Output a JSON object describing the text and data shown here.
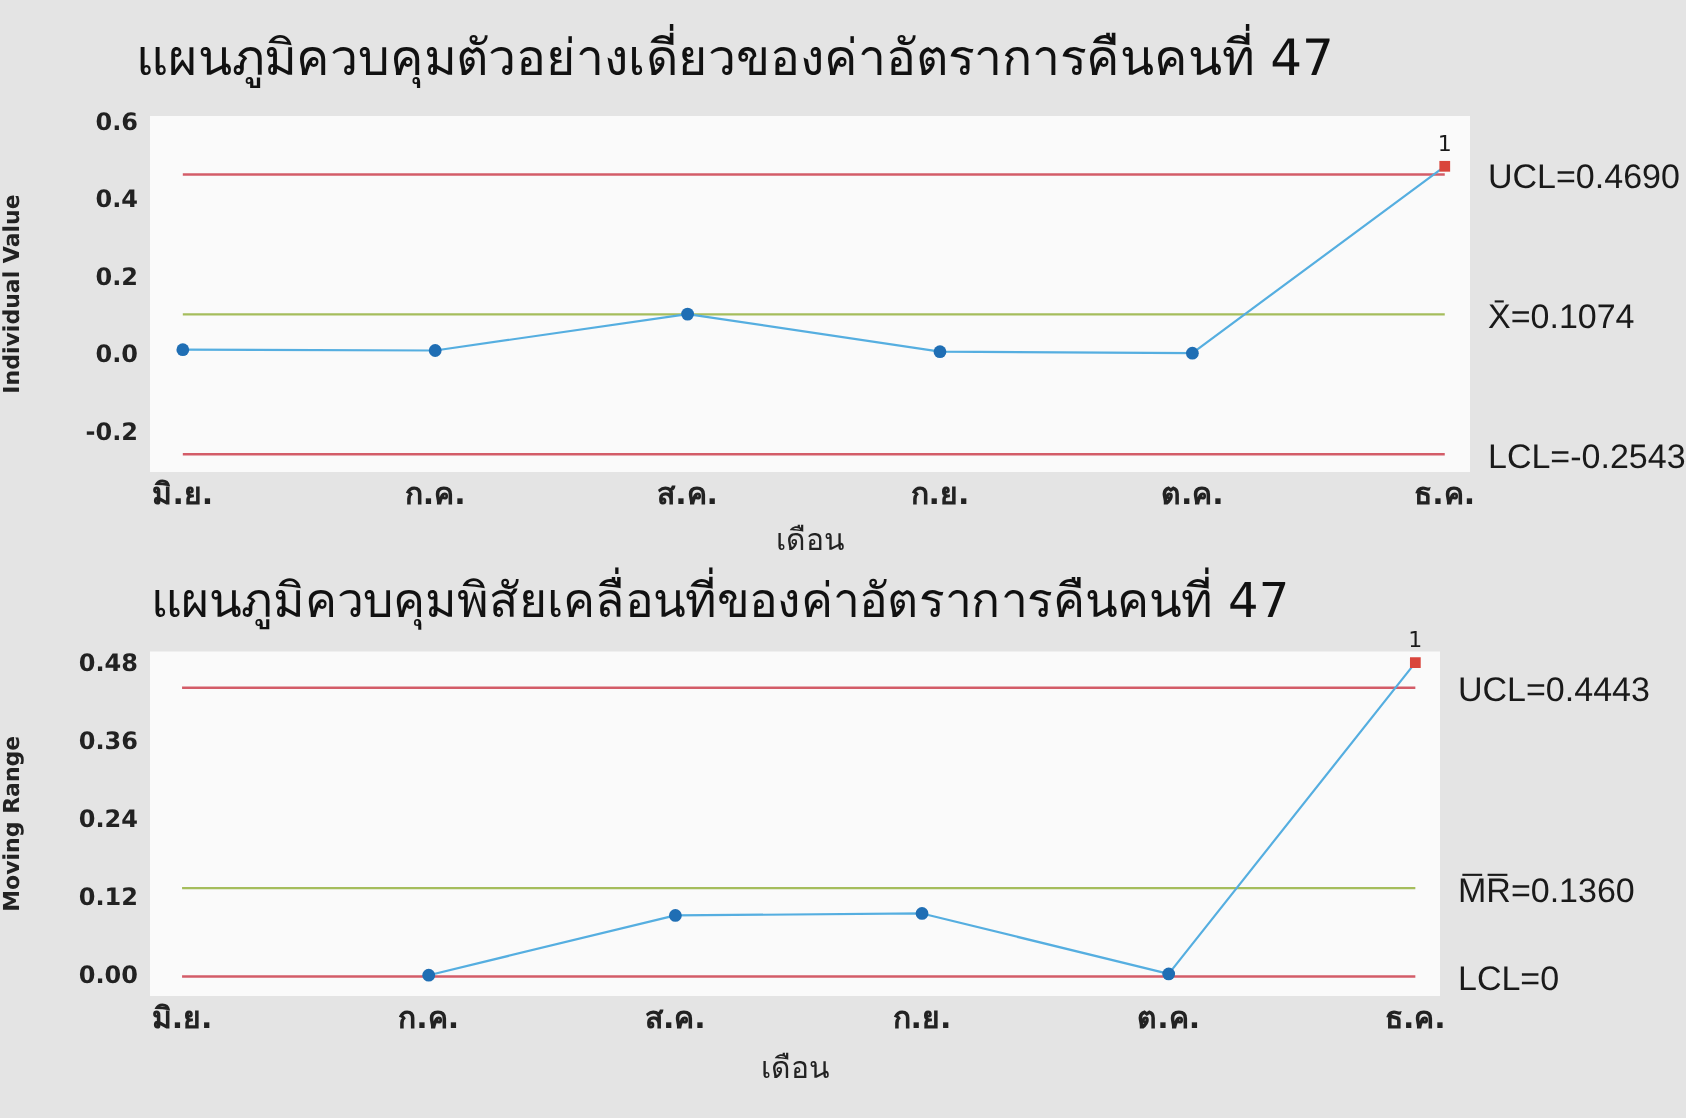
{
  "chart_data": [
    {
      "type": "line",
      "title": "แผนภูมิควบคุมตัวอย่างเดี่ยวของค่าอัตราการคืนคนที่ 47",
      "xlabel": "เดือน",
      "ylabel": "Individual Value",
      "categories": [
        "มิ.ย.",
        "ก.ค.",
        "ส.ค.",
        "ก.ย.",
        "ต.ค.",
        "ธ.ค."
      ],
      "series": [
        {
          "color": "#55aee0",
          "marker": "none",
          "values": [
            0.016,
            0.014,
            0.108,
            0.011,
            0.007,
            0.49
          ]
        },
        {
          "type": "scatter",
          "color": "#1f6eb4",
          "marker": "circle",
          "values": [
            0.016,
            0.014,
            0.108,
            0.011,
            0.007,
            null
          ]
        },
        {
          "type": "scatter",
          "color": "#d9453c",
          "marker": "square",
          "values": [
            null,
            null,
            null,
            null,
            null,
            0.49
          ]
        }
      ],
      "ylim": [
        -0.3,
        0.62
      ],
      "yticks": [
        -0.2,
        {
          "value": 0,
          "label": "0.0"
        },
        0.2,
        0.4,
        0.6
      ],
      "ref_lines": [
        {
          "axis": "y",
          "value": 0.469,
          "label": "UCL=0.4690",
          "color": "#d35c68"
        },
        {
          "axis": "y",
          "value": 0.1074,
          "label": "X̄=0.1074",
          "color": "#a5bd5c"
        },
        {
          "axis": "y",
          "value": -0.2543,
          "label": "LCL=-0.2543",
          "color": "#d35c68"
        }
      ],
      "annotations": [
        {
          "text": "1",
          "x": "ธ.ค.",
          "y": 0.49
        }
      ],
      "grid": false,
      "legend": false
    },
    {
      "type": "line",
      "title": "แผนภูมิควบคุมพิสัยเคลื่อนที่ของค่าอัตราการคืนคนที่ 47",
      "xlabel": "เดือน",
      "ylabel": "Moving Range",
      "categories": [
        "มิ.ย.",
        "ก.ค.",
        "ส.ค.",
        "ก.ย.",
        "ต.ค.",
        "ธ.ค."
      ],
      "series": [
        {
          "color": "#55aee0",
          "marker": "none",
          "values": [
            null,
            0.002,
            0.094,
            0.097,
            0.004,
            0.483
          ]
        },
        {
          "type": "scatter",
          "color": "#1f6eb4",
          "marker": "circle",
          "values": [
            null,
            0.002,
            0.094,
            0.097,
            0.004,
            null
          ]
        },
        {
          "type": "scatter",
          "color": "#d9453c",
          "marker": "square",
          "values": [
            null,
            null,
            null,
            null,
            null,
            0.483
          ]
        }
      ],
      "ylim": [
        -0.03,
        0.5
      ],
      "yticks": [
        {
          "value": 0,
          "label": "0.00"
        },
        0.12,
        0.24,
        0.36,
        0.48
      ],
      "ref_lines": [
        {
          "axis": "y",
          "value": 0.4443,
          "label": "UCL=0.4443",
          "color": "#d35c68"
        },
        {
          "axis": "y",
          "value": 0.136,
          "label": "M̅R̅=0.1360",
          "color": "#a5bd5c"
        },
        {
          "axis": "y",
          "value": 0,
          "label": "LCL=0",
          "color": "#d35c68"
        }
      ],
      "annotations": [
        {
          "text": "1",
          "x": "ธ.ค.",
          "y": 0.483
        }
      ],
      "grid": false,
      "legend": false
    }
  ]
}
